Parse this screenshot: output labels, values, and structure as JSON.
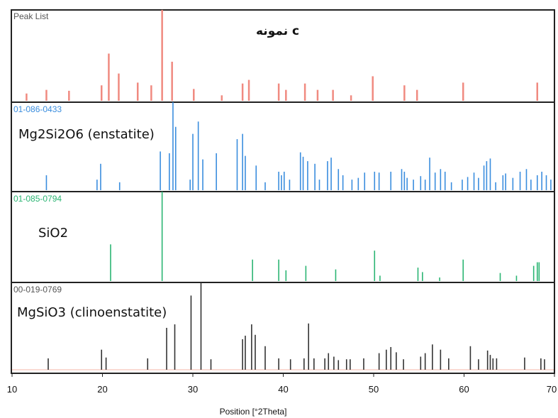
{
  "chart_data": {
    "type": "bar",
    "xlabel": "Position [°2Theta]",
    "xlim": [
      10,
      70
    ],
    "x_ticks": [
      "10",
      "20",
      "30",
      "40",
      "50",
      "60",
      "70"
    ],
    "grid": false,
    "panels": [
      {
        "id": "peak-list",
        "name": "Peak List",
        "title": "نمونه c",
        "compound": "",
        "color": "#f08a80",
        "peaks": [
          [
            11.6,
            0.08
          ],
          [
            13.8,
            0.12
          ],
          [
            16.3,
            0.11
          ],
          [
            19.9,
            0.17
          ],
          [
            20.7,
            0.52
          ],
          [
            21.8,
            0.3
          ],
          [
            23.9,
            0.2
          ],
          [
            25.4,
            0.17
          ],
          [
            26.6,
            1.0
          ],
          [
            27.7,
            0.43
          ],
          [
            30.1,
            0.13
          ],
          [
            33.2,
            0.06
          ],
          [
            35.5,
            0.19
          ],
          [
            36.2,
            0.23
          ],
          [
            39.5,
            0.19
          ],
          [
            40.3,
            0.12
          ],
          [
            42.4,
            0.19
          ],
          [
            43.8,
            0.12
          ],
          [
            45.5,
            0.12
          ],
          [
            47.5,
            0.06
          ],
          [
            49.9,
            0.27
          ],
          [
            53.4,
            0.17
          ],
          [
            54.8,
            0.12
          ],
          [
            59.9,
            0.2
          ],
          [
            68.1,
            0.2
          ]
        ]
      },
      {
        "id": "enstatite",
        "name": "01-086-0433",
        "title": "",
        "compound": "Mg2Si2O6 (enstatite)",
        "color": "#3a8dde",
        "peaks": [
          [
            13.8,
            0.17
          ],
          [
            19.4,
            0.12
          ],
          [
            19.8,
            0.3
          ],
          [
            21.9,
            0.09
          ],
          [
            26.4,
            0.44
          ],
          [
            27.4,
            0.42
          ],
          [
            27.8,
            1.0
          ],
          [
            28.1,
            0.72
          ],
          [
            29.7,
            0.12
          ],
          [
            30.0,
            0.64
          ],
          [
            30.6,
            0.78
          ],
          [
            31.1,
            0.35
          ],
          [
            32.6,
            0.42
          ],
          [
            34.9,
            0.58
          ],
          [
            35.5,
            0.64
          ],
          [
            35.8,
            0.39
          ],
          [
            37.0,
            0.28
          ],
          [
            38.0,
            0.09
          ],
          [
            39.5,
            0.21
          ],
          [
            39.8,
            0.17
          ],
          [
            40.1,
            0.21
          ],
          [
            40.7,
            0.12
          ],
          [
            41.9,
            0.43
          ],
          [
            42.2,
            0.38
          ],
          [
            42.7,
            0.33
          ],
          [
            43.5,
            0.3
          ],
          [
            44.0,
            0.12
          ],
          [
            44.9,
            0.33
          ],
          [
            45.3,
            0.37
          ],
          [
            46.1,
            0.24
          ],
          [
            46.6,
            0.17
          ],
          [
            47.6,
            0.12
          ],
          [
            48.3,
            0.14
          ],
          [
            49.0,
            0.2
          ],
          [
            50.1,
            0.21
          ],
          [
            50.6,
            0.2
          ],
          [
            51.9,
            0.21
          ],
          [
            53.1,
            0.24
          ],
          [
            53.4,
            0.21
          ],
          [
            53.7,
            0.14
          ],
          [
            54.4,
            0.12
          ],
          [
            55.2,
            0.16
          ],
          [
            55.7,
            0.12
          ],
          [
            56.2,
            0.37
          ],
          [
            56.8,
            0.2
          ],
          [
            57.4,
            0.24
          ],
          [
            57.9,
            0.21
          ],
          [
            58.6,
            0.09
          ],
          [
            59.8,
            0.12
          ],
          [
            60.4,
            0.15
          ],
          [
            61.1,
            0.2
          ],
          [
            61.6,
            0.14
          ],
          [
            62.2,
            0.28
          ],
          [
            62.5,
            0.33
          ],
          [
            62.9,
            0.36
          ],
          [
            63.5,
            0.09
          ],
          [
            64.3,
            0.17
          ],
          [
            64.6,
            0.19
          ],
          [
            65.4,
            0.14
          ],
          [
            66.2,
            0.21
          ],
          [
            66.9,
            0.24
          ],
          [
            67.4,
            0.12
          ],
          [
            68.1,
            0.17
          ],
          [
            68.6,
            0.21
          ],
          [
            69.1,
            0.17
          ],
          [
            69.6,
            0.12
          ]
        ]
      },
      {
        "id": "sio2",
        "name": "01-085-0794",
        "title": "",
        "compound": "SiO2",
        "color": "#2bb573",
        "peaks": [
          [
            20.9,
            0.41
          ],
          [
            26.6,
            1.0
          ],
          [
            36.6,
            0.24
          ],
          [
            39.5,
            0.24
          ],
          [
            40.3,
            0.12
          ],
          [
            42.5,
            0.17
          ],
          [
            45.8,
            0.13
          ],
          [
            50.1,
            0.34
          ],
          [
            50.7,
            0.06
          ],
          [
            54.9,
            0.15
          ],
          [
            55.4,
            0.1
          ],
          [
            57.3,
            0.04
          ],
          [
            59.9,
            0.24
          ],
          [
            64.0,
            0.09
          ],
          [
            65.8,
            0.06
          ],
          [
            67.7,
            0.17
          ],
          [
            68.1,
            0.21
          ],
          [
            68.3,
            0.21
          ]
        ]
      },
      {
        "id": "clinoenstatite",
        "name": "00-019-0769",
        "title": "",
        "compound": "MgSiO3 (clinoenstatite)",
        "color": "#333333",
        "peaks": [
          [
            14.0,
            0.13
          ],
          [
            19.9,
            0.23
          ],
          [
            20.4,
            0.14
          ],
          [
            25.0,
            0.13
          ],
          [
            27.1,
            0.48
          ],
          [
            28.0,
            0.52
          ],
          [
            29.8,
            0.85
          ],
          [
            30.9,
            1.0
          ],
          [
            32.0,
            0.12
          ],
          [
            35.5,
            0.35
          ],
          [
            35.8,
            0.39
          ],
          [
            36.5,
            0.52
          ],
          [
            36.9,
            0.4
          ],
          [
            38.0,
            0.27
          ],
          [
            39.5,
            0.13
          ],
          [
            40.8,
            0.12
          ],
          [
            42.3,
            0.13
          ],
          [
            42.8,
            0.53
          ],
          [
            43.4,
            0.13
          ],
          [
            44.6,
            0.13
          ],
          [
            45.0,
            0.19
          ],
          [
            45.6,
            0.15
          ],
          [
            46.1,
            0.11
          ],
          [
            47.0,
            0.12
          ],
          [
            47.4,
            0.12
          ],
          [
            48.9,
            0.13
          ],
          [
            50.6,
            0.19
          ],
          [
            51.4,
            0.23
          ],
          [
            51.9,
            0.26
          ],
          [
            52.5,
            0.2
          ],
          [
            53.3,
            0.12
          ],
          [
            55.2,
            0.15
          ],
          [
            55.7,
            0.19
          ],
          [
            56.5,
            0.29
          ],
          [
            57.4,
            0.23
          ],
          [
            58.3,
            0.13
          ],
          [
            60.7,
            0.27
          ],
          [
            61.6,
            0.12
          ],
          [
            62.6,
            0.22
          ],
          [
            62.9,
            0.17
          ],
          [
            63.2,
            0.13
          ],
          [
            63.6,
            0.13
          ],
          [
            66.7,
            0.14
          ],
          [
            68.5,
            0.13
          ],
          [
            68.9,
            0.12
          ]
        ]
      }
    ]
  }
}
